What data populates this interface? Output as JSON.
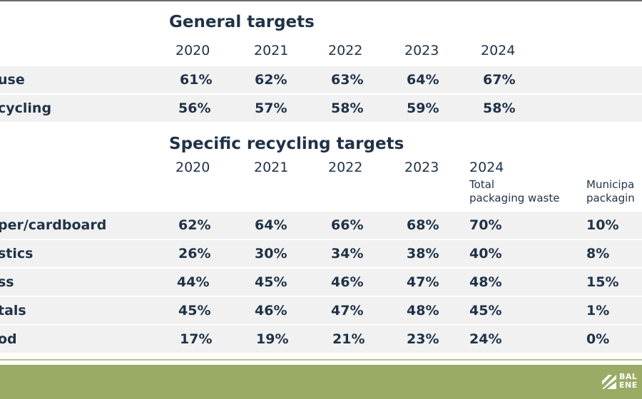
{
  "general": {
    "title": "General targets",
    "years": [
      "2020",
      "2021",
      "2022",
      "2023",
      "2024"
    ],
    "rows": [
      {
        "label": "use",
        "values": [
          "61%",
          "62%",
          "63%",
          "64%",
          "67%"
        ]
      },
      {
        "label": "cycling",
        "values": [
          "56%",
          "57%",
          "58%",
          "59%",
          "58%"
        ]
      }
    ]
  },
  "specific": {
    "title": "Specific recycling targets",
    "years": [
      "2020",
      "2021",
      "2022",
      "2023",
      "2024"
    ],
    "sub_total": [
      "Total",
      "packaging waste"
    ],
    "sub_municipal": [
      "Municipa",
      "packagin"
    ],
    "rows": [
      {
        "label": "per/cardboard",
        "values": [
          "62%",
          "64%",
          "66%",
          "68%",
          "70%",
          "10%"
        ]
      },
      {
        "label": "stics",
        "values": [
          "26%",
          "30%",
          "34%",
          "38%",
          "40%",
          "8%"
        ]
      },
      {
        "label": "ss",
        "values": [
          "44%",
          "45%",
          "46%",
          "47%",
          "48%",
          "15%"
        ]
      },
      {
        "label": "tals",
        "values": [
          "45%",
          "46%",
          "47%",
          "48%",
          "45%",
          "1%"
        ]
      },
      {
        "label": "od",
        "values": [
          "17%",
          "19%",
          "21%",
          "23%",
          "24%",
          "0%"
        ]
      }
    ]
  },
  "footer": {
    "logo_text": [
      "BAL",
      "ENE"
    ],
    "logo_icon": "company-logo-icon",
    "footer_color": "#9aab66"
  }
}
